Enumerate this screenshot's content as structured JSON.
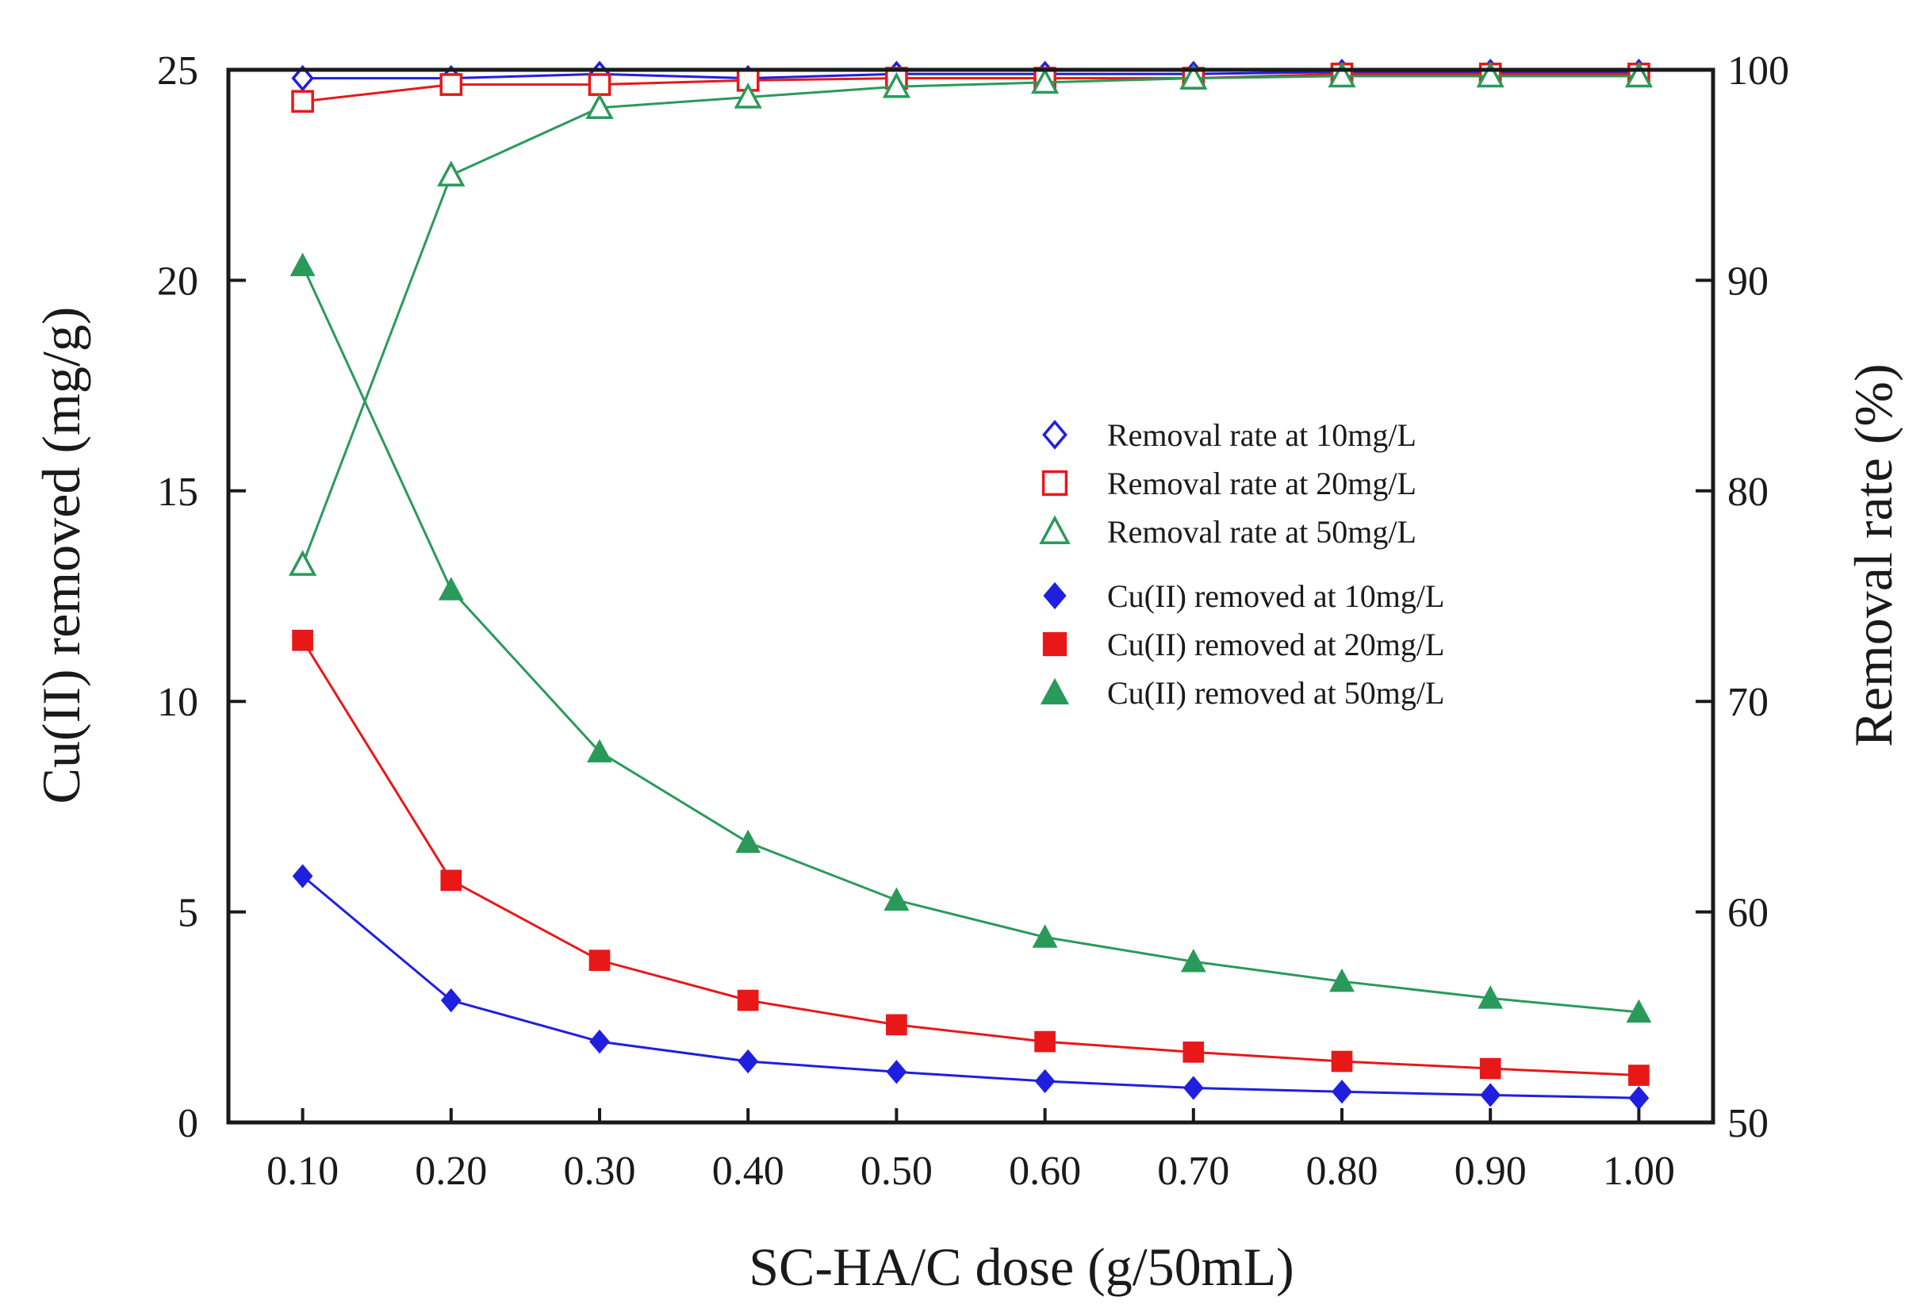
{
  "chart_data": {
    "type": "line",
    "title": "",
    "xlabel": "SC-HA/C dose (g/50mL)",
    "ylabel_left": "Cu(II)  removed (mg/g)",
    "ylabel_right": "Removal rate (%)",
    "x": [
      0.1,
      0.2,
      0.3,
      0.4,
      0.5,
      0.6,
      0.7,
      0.8,
      0.9,
      1.0
    ],
    "x_tick_labels": [
      "0.10",
      "0.20",
      "0.30",
      "0.40",
      "0.50",
      "0.60",
      "0.70",
      "0.80",
      "0.90",
      "1.00"
    ],
    "ylim_left": [
      0,
      25
    ],
    "ylim_right": [
      50,
      100
    ],
    "y_left_ticks": [
      "0",
      "5",
      "10",
      "15",
      "20",
      "25"
    ],
    "y_right_ticks": [
      "50",
      "60",
      "70",
      "80",
      "90",
      "100"
    ],
    "legend_position": "center-right",
    "series": [
      {
        "name": "Removal rate at 10mg/L",
        "axis": "right",
        "marker": "diamond-open",
        "color": "#1f1fe0",
        "values": [
          99.6,
          99.6,
          99.8,
          99.6,
          99.8,
          99.8,
          99.8,
          99.9,
          99.9,
          99.9
        ]
      },
      {
        "name": "Removal rate at 20mg/L",
        "axis": "right",
        "marker": "square-open",
        "color": "#e81818",
        "values": [
          98.5,
          99.3,
          99.3,
          99.5,
          99.6,
          99.6,
          99.6,
          99.8,
          99.8,
          99.8
        ]
      },
      {
        "name": "Removal rate at 50mg/L",
        "axis": "right",
        "marker": "triangle-open",
        "color": "#2a9a5a",
        "values": [
          76.5,
          95.0,
          98.2,
          98.7,
          99.2,
          99.4,
          99.6,
          99.7,
          99.7,
          99.7
        ]
      },
      {
        "name": "Cu(II) removed at 10mg/L",
        "axis": "left",
        "marker": "diamond-filled",
        "color": "#1f1fe0",
        "values": [
          5.85,
          2.9,
          1.92,
          1.45,
          1.2,
          0.98,
          0.82,
          0.73,
          0.65,
          0.58
        ]
      },
      {
        "name": "Cu(II) removed at 20mg/L",
        "axis": "left",
        "marker": "square-filled",
        "color": "#e81818",
        "values": [
          11.45,
          5.75,
          3.85,
          2.9,
          2.32,
          1.92,
          1.67,
          1.45,
          1.28,
          1.12
        ]
      },
      {
        "name": "Cu(II) removed at 50mg/L",
        "axis": "left",
        "marker": "triangle-filled",
        "color": "#2a9a5a",
        "values": [
          20.35,
          12.65,
          8.8,
          6.65,
          5.28,
          4.4,
          3.82,
          3.35,
          2.95,
          2.62
        ]
      }
    ]
  }
}
